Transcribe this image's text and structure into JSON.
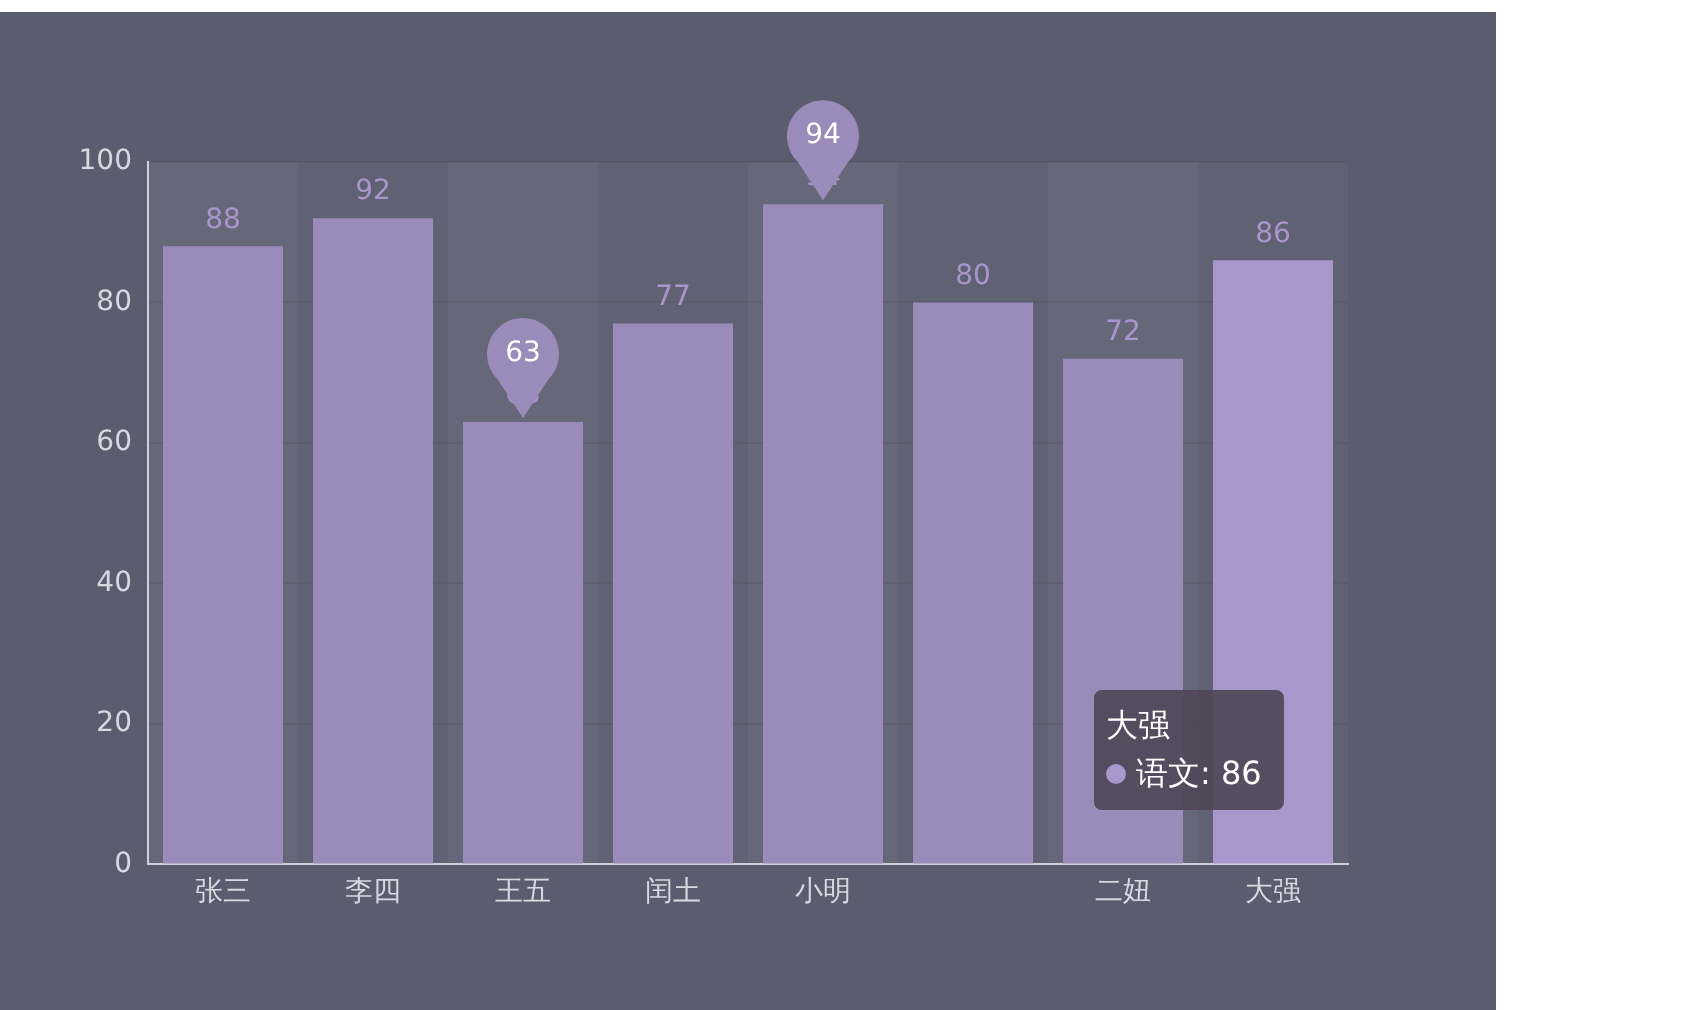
{
  "chart_data": {
    "type": "bar",
    "categories": [
      "张三",
      "李四",
      "王五",
      "闰土",
      "小明",
      null,
      "二妞",
      "大强"
    ],
    "values": [
      88,
      92,
      63,
      77,
      94,
      80,
      72,
      86
    ],
    "colors": [
      "#9b8bba",
      "#9b8bba",
      "#9b8bba",
      "#9b8bba",
      "#9b8bba",
      "#9b8bba",
      "#9b8bba",
      "#a996cc"
    ],
    "ylim": [
      0,
      100
    ],
    "yticks": [
      0,
      20,
      40,
      60,
      80,
      100
    ],
    "grid": "y",
    "data_labels": true,
    "annotations": [
      {
        "text": "94",
        "x": "小明",
        "y": 94
      },
      {
        "text": "63",
        "x": "王五",
        "y": 63
      },
      "大强",
      "语文: 86"
    ]
  }
}
